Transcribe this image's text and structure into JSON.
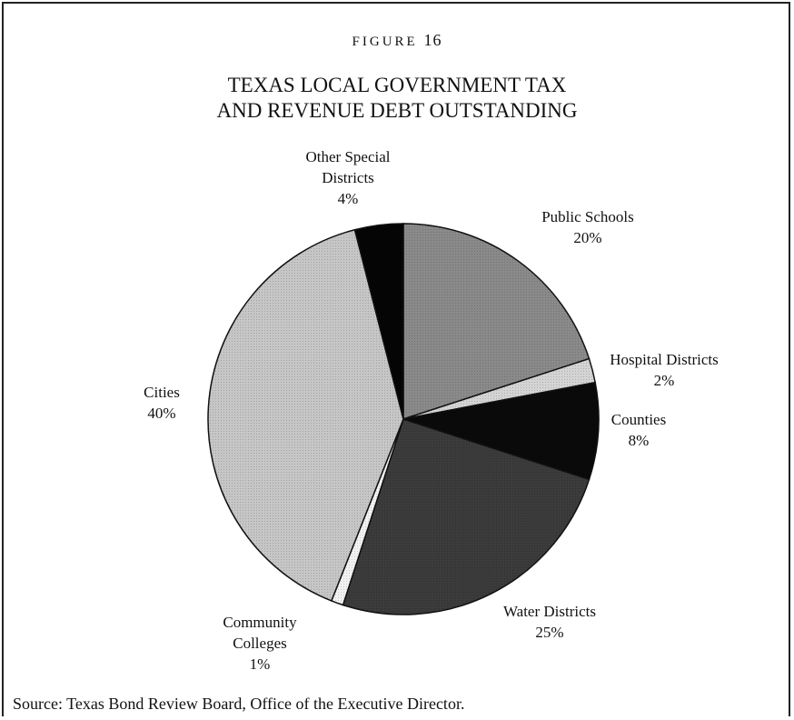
{
  "figure": {
    "label_text": "FIGURE",
    "label_number": "16"
  },
  "source": {
    "label": "Source:",
    "text": "Texas Bond Review Board, Office of the Executive Director."
  },
  "chart_data": {
    "type": "pie",
    "title_lines": [
      "TEXAS LOCAL GOVERNMENT TAX",
      "AND REVENUE DEBT OUTSTANDING"
    ],
    "unit": "%",
    "slices": [
      {
        "label_lines": [
          "Public Schools"
        ],
        "value": 20,
        "value_text": "20%",
        "color": "#8a8a8a"
      },
      {
        "label_lines": [
          "Hospital Districts"
        ],
        "value": 2,
        "value_text": "2%",
        "color": "#d4d4d4"
      },
      {
        "label_lines": [
          "Counties"
        ],
        "value": 8,
        "value_text": "8%",
        "color": "#0a0a0a"
      },
      {
        "label_lines": [
          "Water Districts"
        ],
        "value": 25,
        "value_text": "25%",
        "color": "#3b3b3b"
      },
      {
        "label_lines": [
          "Community",
          "Colleges"
        ],
        "value": 1,
        "value_text": "1%",
        "color": "#f2f2f2"
      },
      {
        "label_lines": [
          "Cities"
        ],
        "value": 40,
        "value_text": "40%",
        "color": "#c6c6c6"
      },
      {
        "label_lines": [
          "Other Special",
          "Districts"
        ],
        "value": 4,
        "value_text": "4%",
        "color": "#050505"
      }
    ]
  }
}
